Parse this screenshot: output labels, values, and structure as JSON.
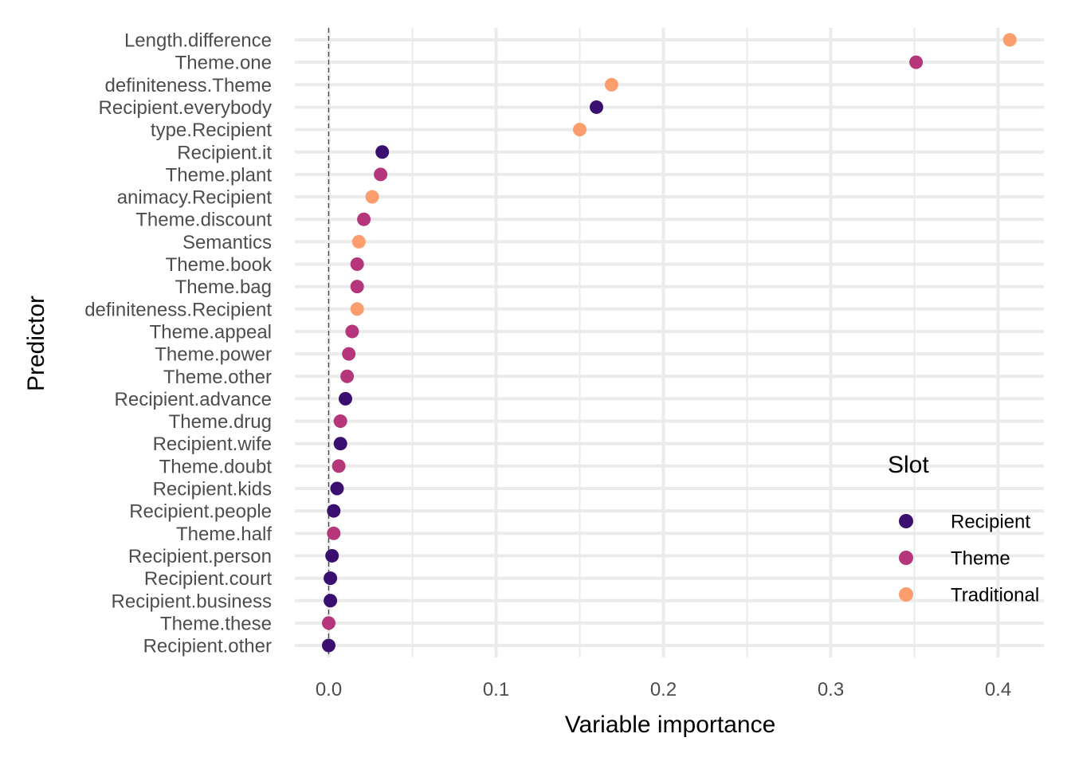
{
  "chart_data": {
    "type": "scatter",
    "xlabel": "Variable importance",
    "ylabel": "Predictor",
    "xlim": [
      -0.02,
      0.43
    ],
    "x_ticks": [
      0.0,
      0.1,
      0.2,
      0.3,
      0.4
    ],
    "x_tick_labels": [
      "0.0",
      "0.1",
      "0.2",
      "0.3",
      "0.4"
    ],
    "grid": true,
    "reference_line": {
      "x": 0,
      "style": "dashed"
    },
    "legend": {
      "title": "Slot",
      "placement": "right",
      "entries": [
        {
          "label": "Recipient",
          "color": "#3b0f70"
        },
        {
          "label": "Theme",
          "color": "#b5367a"
        },
        {
          "label": "Traditional",
          "color": "#fc9d6d"
        }
      ]
    },
    "points": [
      {
        "predictor": "Length.difference",
        "value": 0.407,
        "slot": "Traditional"
      },
      {
        "predictor": "Theme.one",
        "value": 0.351,
        "slot": "Theme"
      },
      {
        "predictor": "definiteness.Theme",
        "value": 0.169,
        "slot": "Traditional"
      },
      {
        "predictor": "Recipient.everybody",
        "value": 0.16,
        "slot": "Recipient"
      },
      {
        "predictor": "type.Recipient",
        "value": 0.15,
        "slot": "Traditional"
      },
      {
        "predictor": "Recipient.it",
        "value": 0.032,
        "slot": "Recipient"
      },
      {
        "predictor": "Theme.plant",
        "value": 0.031,
        "slot": "Theme"
      },
      {
        "predictor": "animacy.Recipient",
        "value": 0.026,
        "slot": "Traditional"
      },
      {
        "predictor": "Theme.discount",
        "value": 0.021,
        "slot": "Theme"
      },
      {
        "predictor": "Semantics",
        "value": 0.018,
        "slot": "Traditional"
      },
      {
        "predictor": "Theme.book",
        "value": 0.017,
        "slot": "Theme"
      },
      {
        "predictor": "Theme.bag",
        "value": 0.017,
        "slot": "Theme"
      },
      {
        "predictor": "definiteness.Recipient",
        "value": 0.017,
        "slot": "Traditional"
      },
      {
        "predictor": "Theme.appeal",
        "value": 0.014,
        "slot": "Theme"
      },
      {
        "predictor": "Theme.power",
        "value": 0.012,
        "slot": "Theme"
      },
      {
        "predictor": "Theme.other",
        "value": 0.011,
        "slot": "Theme"
      },
      {
        "predictor": "Recipient.advance",
        "value": 0.01,
        "slot": "Recipient"
      },
      {
        "predictor": "Theme.drug",
        "value": 0.007,
        "slot": "Theme"
      },
      {
        "predictor": "Recipient.wife",
        "value": 0.007,
        "slot": "Recipient"
      },
      {
        "predictor": "Theme.doubt",
        "value": 0.006,
        "slot": "Theme"
      },
      {
        "predictor": "Recipient.kids",
        "value": 0.005,
        "slot": "Recipient"
      },
      {
        "predictor": "Recipient.people",
        "value": 0.003,
        "slot": "Recipient"
      },
      {
        "predictor": "Theme.half",
        "value": 0.003,
        "slot": "Theme"
      },
      {
        "predictor": "Recipient.person",
        "value": 0.002,
        "slot": "Recipient"
      },
      {
        "predictor": "Recipient.court",
        "value": 0.001,
        "slot": "Recipient"
      },
      {
        "predictor": "Recipient.business",
        "value": 0.001,
        "slot": "Recipient"
      },
      {
        "predictor": "Theme.these",
        "value": 0.0,
        "slot": "Theme"
      },
      {
        "predictor": "Recipient.other",
        "value": 0.0,
        "slot": "Recipient"
      }
    ]
  }
}
